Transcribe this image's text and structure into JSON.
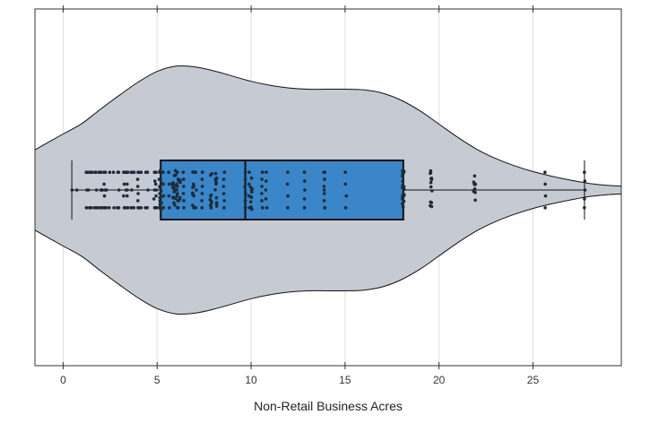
{
  "chart_data": {
    "type": "violin-box-strip",
    "title": "",
    "xlabel": "Non-Retail Business Acres",
    "ylabel": "",
    "xlim": [
      -1.5,
      29.7
    ],
    "x_ticks": [
      0,
      5,
      10,
      15,
      20,
      25
    ],
    "x_tick_labels": [
      "0",
      "5",
      "10",
      "15",
      "20",
      "25"
    ],
    "grid": "vertical",
    "legend": "none",
    "box": {
      "whisker_low": 0.46,
      "q1": 5.19,
      "median": 9.69,
      "q3": 18.1,
      "whisker_high": 27.74,
      "fill": "#3a86c8"
    },
    "violin": {
      "fill": "#c5cad3",
      "density_x": [
        -1.5,
        0,
        1,
        2,
        3,
        4,
        5,
        6,
        7,
        8,
        9,
        10,
        11,
        12,
        13,
        14,
        15,
        16,
        17,
        18,
        19,
        20,
        21,
        22,
        23,
        24,
        25,
        26,
        27,
        28,
        29,
        29.7
      ],
      "density": [
        0.305,
        0.425,
        0.505,
        0.615,
        0.72,
        0.82,
        0.9,
        0.94,
        0.935,
        0.905,
        0.865,
        0.825,
        0.795,
        0.775,
        0.765,
        0.765,
        0.765,
        0.76,
        0.735,
        0.68,
        0.6,
        0.5,
        0.4,
        0.31,
        0.24,
        0.185,
        0.14,
        0.105,
        0.075,
        0.05,
        0.035,
        0.03
      ]
    },
    "points": {
      "color": "#1d2b3a",
      "x": [
        0.46,
        0.74,
        1.22,
        1.25,
        1.32,
        1.38,
        1.47,
        1.52,
        1.69,
        1.76,
        1.89,
        2.01,
        2.02,
        2.03,
        2.06,
        2.18,
        2.24,
        2.25,
        2.31,
        2.46,
        2.68,
        2.89,
        2.95,
        3.24,
        3.33,
        3.41,
        3.44,
        3.64,
        3.75,
        3.78,
        3.97,
        4.05,
        4.15,
        4.39,
        4.49,
        4.86,
        4.93,
        4.95,
        5.13,
        5.19,
        5.32,
        5.64,
        5.86,
        5.96,
        6.06,
        6.07,
        6.09,
        6.2,
        6.41,
        6.91,
        6.96,
        7.07,
        7.38,
        7.87,
        8.14,
        8.56,
        9.69,
        9.9,
        10.01,
        10.59,
        10.81,
        11.93,
        12.83,
        13.89,
        13.92,
        15.04,
        18.1,
        19.58,
        21.89,
        25.65,
        27.74
      ],
      "counts": [
        1,
        1,
        2,
        3,
        1,
        2,
        2,
        2,
        2,
        3,
        2,
        2,
        3,
        1,
        1,
        4,
        3,
        2,
        1,
        2,
        2,
        2,
        3,
        4,
        3,
        4,
        3,
        3,
        2,
        2,
        6,
        2,
        2,
        2,
        3,
        5,
        4,
        3,
        6,
        14,
        4,
        4,
        8,
        7,
        4,
        3,
        6,
        7,
        6,
        8,
        4,
        3,
        6,
        10,
        11,
        6,
        6,
        4,
        10,
        6,
        5,
        4,
        5,
        6,
        3,
        4,
        20,
        13,
        10,
        4,
        5
      ]
    }
  }
}
